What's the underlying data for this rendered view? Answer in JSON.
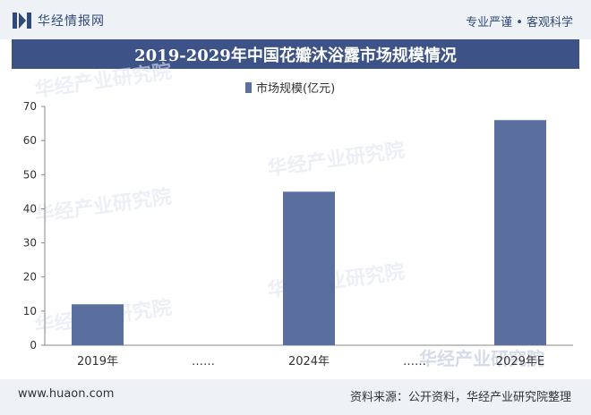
{
  "header": {
    "brand": "华经情报网",
    "slogan": "专业严谨 • 客观科学"
  },
  "colors": {
    "bar": "#5a6f9d",
    "title_bg": "#3d5286",
    "bars_bg": "#eef1f6"
  },
  "chart_data": {
    "type": "bar",
    "title": "2019-2029年中国花瓣沐浴露市场规模情况",
    "categories": [
      "2019年",
      "……",
      "2024年",
      "……",
      "2029年E"
    ],
    "series": [
      {
        "name": "市场规模(亿元)",
        "values": [
          12,
          null,
          45,
          null,
          66
        ]
      }
    ],
    "ylim": [
      0,
      70
    ],
    "yticks": [
      0,
      10,
      20,
      30,
      40,
      50,
      60,
      70
    ],
    "xlabel": "",
    "ylabel": "",
    "grid": false,
    "legend_position": "top"
  },
  "watermark": "华经产业研究院",
  "footer": {
    "url": "www.huaon.com",
    "source": "资料来源：公开资料，华经产业研究院整理"
  }
}
